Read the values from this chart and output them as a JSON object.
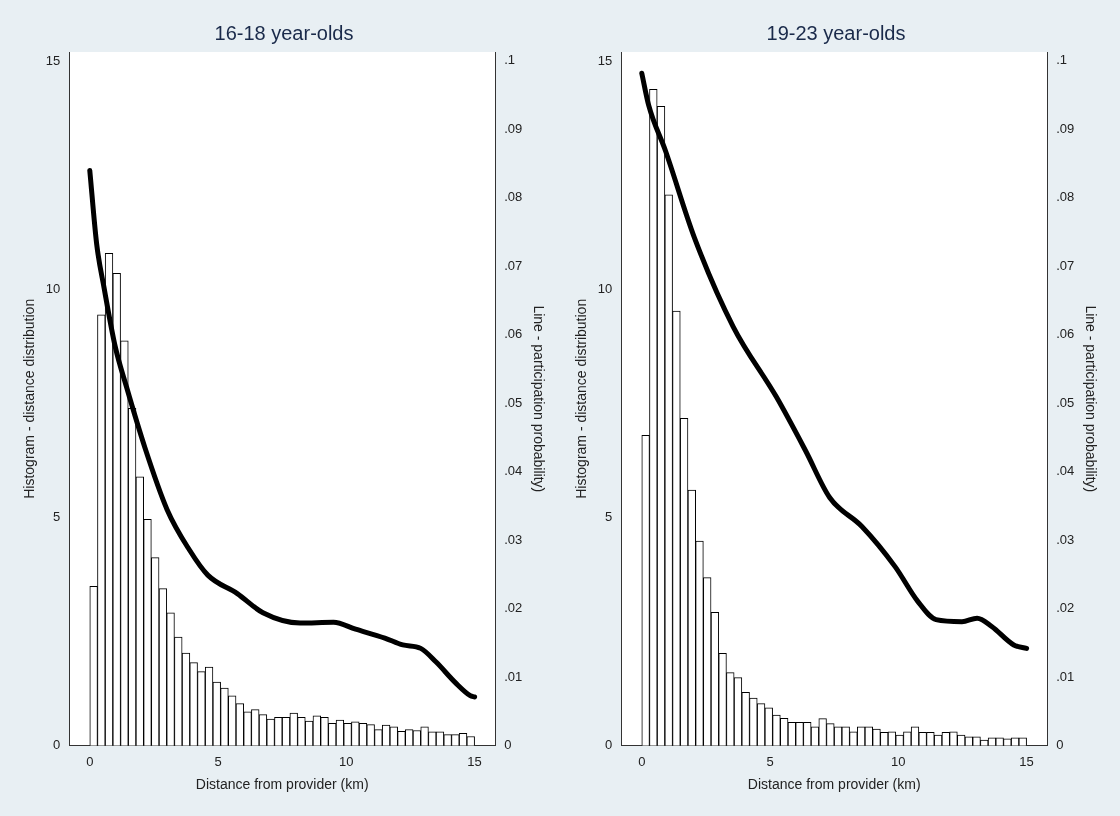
{
  "chart_data": [
    {
      "type": "histogram",
      "title": "16-18 year-olds",
      "xlabel": "Distance from provider (km)",
      "ylabel": "Histogram - distance distribution",
      "y2label": "Line - participation probability)",
      "color": "#ffffff",
      "bins": [
        0,
        0.3,
        0.6,
        0.9,
        1.2,
        1.5,
        1.8,
        2.1,
        2.4,
        2.7,
        3,
        3.3,
        3.6,
        3.9,
        4.2,
        4.5,
        4.8,
        5.1,
        5.4,
        5.7,
        6,
        6.3,
        6.6,
        6.9,
        7.2,
        7.5,
        7.8,
        8.1,
        8.4,
        8.7,
        9,
        9.3,
        9.6,
        9.9,
        10.2,
        10.5,
        10.8,
        11.1,
        11.4,
        11.7,
        12,
        12.3,
        12.6,
        12.9,
        13.2,
        13.5,
        13.8,
        14.1,
        14.4,
        14.7,
        15
      ],
      "values": [
        3.49,
        9.44,
        10.79,
        10.35,
        8.87,
        7.39,
        5.89,
        4.96,
        4.12,
        3.44,
        2.91,
        2.38,
        2.03,
        1.82,
        1.62,
        1.72,
        1.39,
        1.26,
        1.09,
        0.92,
        0.74,
        0.79,
        0.68,
        0.58,
        0.62,
        0.62,
        0.71,
        0.62,
        0.54,
        0.65,
        0.62,
        0.49,
        0.56,
        0.49,
        0.52,
        0.49,
        0.46,
        0.35,
        0.45,
        0.41,
        0.31,
        0.35,
        0.33,
        0.41,
        0.3,
        0.3,
        0.24,
        0.24,
        0.27,
        0.2
      ],
      "series": [
        {
          "type": "line",
          "axis": "y2",
          "color": "#000000",
          "x": [
            0,
            0.27,
            0.56,
            0.99,
            1.43,
            2.15,
            3.01,
            3.88,
            4.6,
            5.75,
            6.75,
            8.2,
            9.5,
            10.36,
            11.5,
            12.2,
            12.9,
            13.5,
            14.25,
            14.83,
            15
          ],
          "values": [
            0.084,
            0.0732,
            0.0668,
            0.0583,
            0.0524,
            0.0435,
            0.0345,
            0.0286,
            0.0249,
            0.0222,
            0.0194,
            0.0179,
            0.018,
            0.017,
            0.0157,
            0.0147,
            0.0142,
            0.0122,
            0.0092,
            0.0073,
            0.0071
          ]
        }
      ],
      "xlim": [
        -0.8,
        15.8
      ],
      "xticks": [
        0,
        5,
        10,
        15
      ],
      "ylim": [
        0,
        15.2
      ],
      "yticks": [
        0,
        5,
        10,
        15
      ],
      "y2lim": [
        0,
        0.1013
      ],
      "y2ticks": [
        0,
        {
          "value": 0.01,
          "label": ".01"
        },
        {
          "value": 0.02,
          "label": ".02"
        },
        {
          "value": 0.03,
          "label": ".03"
        },
        {
          "value": 0.04,
          "label": ".04"
        },
        {
          "value": 0.05,
          "label": ".05"
        },
        {
          "value": 0.06,
          "label": ".06"
        },
        {
          "value": 0.07,
          "label": ".07"
        },
        {
          "value": 0.08,
          "label": ".08"
        },
        {
          "value": 0.09,
          "label": ".09"
        },
        {
          "value": 0.1,
          "label": ".1"
        }
      ]
    },
    {
      "type": "histogram",
      "title": "19-23 year-olds",
      "xlabel": "Distance from provider (km)",
      "ylabel": "Histogram - distance distribution",
      "y2label": "Line - participation probability)",
      "color": "#ffffff",
      "bins": [
        0,
        0.3,
        0.6,
        0.9,
        1.2,
        1.5,
        1.8,
        2.1,
        2.4,
        2.7,
        3,
        3.3,
        3.6,
        3.9,
        4.2,
        4.5,
        4.8,
        5.1,
        5.4,
        5.7,
        6,
        6.3,
        6.6,
        6.9,
        7.2,
        7.5,
        7.8,
        8.1,
        8.4,
        8.7,
        9,
        9.3,
        9.6,
        9.9,
        10.2,
        10.5,
        10.8,
        11.1,
        11.4,
        11.7,
        12,
        12.3,
        12.6,
        12.9,
        13.2,
        13.5,
        13.8,
        14.1,
        14.4,
        14.7,
        15
      ],
      "values": [
        6.8,
        14.38,
        14.01,
        12.07,
        9.52,
        7.17,
        5.6,
        4.48,
        3.68,
        2.92,
        2.02,
        1.6,
        1.49,
        1.17,
        1.04,
        0.92,
        0.83,
        0.67,
        0.6,
        0.51,
        0.51,
        0.51,
        0.41,
        0.59,
        0.48,
        0.41,
        0.41,
        0.3,
        0.41,
        0.41,
        0.36,
        0.29,
        0.3,
        0.23,
        0.3,
        0.41,
        0.29,
        0.29,
        0.23,
        0.29,
        0.3,
        0.23,
        0.19,
        0.19,
        0.12,
        0.17,
        0.17,
        0.15,
        0.17,
        0.17
      ],
      "series": [
        {
          "type": "line",
          "axis": "y2",
          "color": "#000000",
          "x": [
            0,
            0.27,
            0.93,
            2.05,
            3.56,
            5.25,
            6.38,
            7.33,
            8.58,
            9.88,
            10.75,
            11.47,
            12.48,
            13.07,
            13.64,
            14.5,
            15
          ],
          "values": [
            0.0982,
            0.0935,
            0.0868,
            0.0742,
            0.0612,
            0.0509,
            0.0431,
            0.0362,
            0.032,
            0.0261,
            0.0211,
            0.0184,
            0.0181,
            0.0186,
            0.0174,
            0.0147,
            0.0142
          ]
        }
      ],
      "xlim": [
        -0.8,
        15.8
      ],
      "xticks": [
        0,
        5,
        10,
        15
      ],
      "ylim": [
        0,
        15.2
      ],
      "yticks": [
        0,
        5,
        10,
        15
      ],
      "y2lim": [
        0,
        0.1013
      ],
      "y2ticks": [
        0,
        {
          "value": 0.01,
          "label": ".01"
        },
        {
          "value": 0.02,
          "label": ".02"
        },
        {
          "value": 0.03,
          "label": ".03"
        },
        {
          "value": 0.04,
          "label": ".04"
        },
        {
          "value": 0.05,
          "label": ".05"
        },
        {
          "value": 0.06,
          "label": ".06"
        },
        {
          "value": 0.07,
          "label": ".07"
        },
        {
          "value": 0.08,
          "label": ".08"
        },
        {
          "value": 0.09,
          "label": ".09"
        },
        {
          "value": 0.1,
          "label": ".1"
        }
      ]
    }
  ]
}
